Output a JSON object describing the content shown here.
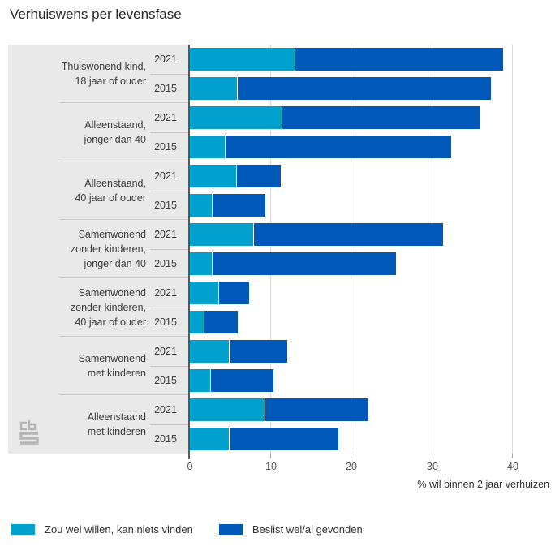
{
  "title": "Verhuiswens per levensfase",
  "legend": [
    {
      "label": "Zou wel willen, kan niets vinden",
      "color": "#00a1cd"
    },
    {
      "label": "Beslist wel/al gevonden",
      "color": "#0058b8"
    }
  ],
  "chart_data": {
    "type": "bar",
    "orientation": "horizontal-stacked",
    "title": "Verhuiswens per levensfase",
    "xlabel": "% wil binnen 2 jaar verhuizen",
    "unit": "%",
    "xticks": [
      0,
      10,
      20,
      30,
      40
    ],
    "xlim": [
      0,
      44.5
    ],
    "grid": "vertical",
    "legend_position": "bottom",
    "series_names": [
      "Zou wel willen, kan niets vinden",
      "Beslist wel/al gevonden"
    ],
    "colors": {
      "light": "#00a1cd",
      "dark": "#0058b8"
    },
    "groups": [
      {
        "label": "Thuiswonend kind, 18 jaar of ouder",
        "label_lines": [
          "Thuiswonend kind,",
          "18 jaar of ouder"
        ],
        "rows": [
          {
            "year": "2021",
            "light": 13.0,
            "dark": 25.8
          },
          {
            "year": "2015",
            "light": 5.8,
            "dark": 31.5
          }
        ]
      },
      {
        "label": "Alleenstaand, jonger dan 40",
        "label_lines": [
          "Alleenstaand,",
          "jonger dan 40"
        ],
        "rows": [
          {
            "year": "2021",
            "light": 11.4,
            "dark": 24.6
          },
          {
            "year": "2015",
            "light": 4.3,
            "dark": 28.0
          }
        ]
      },
      {
        "label": "Alleenstaand, 40 jaar of ouder",
        "label_lines": [
          "Alleenstaand,",
          "40 jaar of ouder"
        ],
        "rows": [
          {
            "year": "2021",
            "light": 5.7,
            "dark": 5.5
          },
          {
            "year": "2015",
            "light": 2.7,
            "dark": 6.6
          }
        ]
      },
      {
        "label": "Samenwonend zonder kinderen, jonger dan 40",
        "label_lines": [
          "Samenwonend",
          "zonder kinderen,",
          "jonger dan 40"
        ],
        "rows": [
          {
            "year": "2021",
            "light": 7.8,
            "dark": 23.5
          },
          {
            "year": "2015",
            "light": 2.7,
            "dark": 22.8
          }
        ]
      },
      {
        "label": "Samenwonend zonder kinderen, 40 jaar of ouder",
        "label_lines": [
          "Samenwonend",
          "zonder kinderen,",
          "40 jaar of ouder"
        ],
        "rows": [
          {
            "year": "2021",
            "light": 3.5,
            "dark": 3.8
          },
          {
            "year": "2015",
            "light": 1.7,
            "dark": 4.2
          }
        ]
      },
      {
        "label": "Samenwonend met kinderen",
        "label_lines": [
          "Samenwonend",
          "met kinderen"
        ],
        "rows": [
          {
            "year": "2021",
            "light": 4.8,
            "dark": 7.2
          },
          {
            "year": "2015",
            "light": 2.5,
            "dark": 7.8
          }
        ]
      },
      {
        "label": "Alleenstaand met kinderen",
        "label_lines": [
          "Alleenstaand",
          "met kinderen"
        ],
        "rows": [
          {
            "year": "2021",
            "light": 9.2,
            "dark": 12.9
          },
          {
            "year": "2015",
            "light": 4.8,
            "dark": 13.6
          }
        ]
      }
    ]
  }
}
